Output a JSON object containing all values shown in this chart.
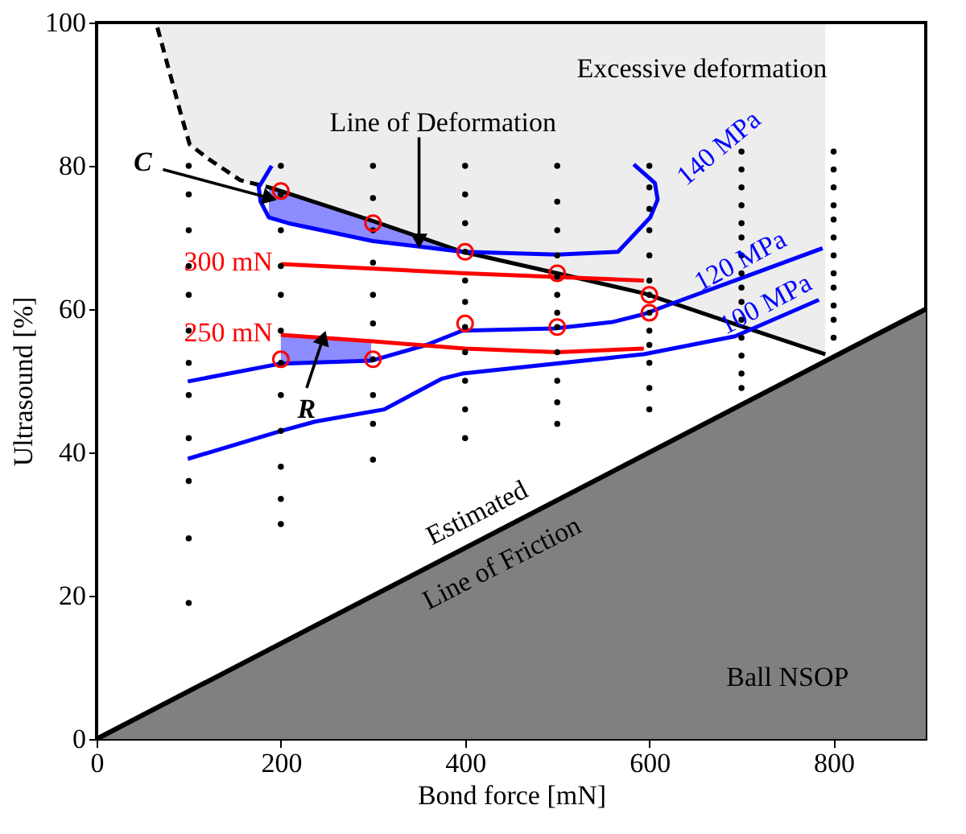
{
  "chart_data": {
    "type": "line",
    "xlabel": "Bond force [mN]",
    "ylabel": "Ultrasound [%]",
    "xlim": [
      0,
      900
    ],
    "ylim": [
      0,
      100
    ],
    "xticks": [
      0,
      200,
      400,
      600,
      800
    ],
    "yticks": [
      0,
      20,
      40,
      60,
      80,
      100
    ],
    "grid": false,
    "series": [
      {
        "color": "#000000",
        "line_style": "dashed",
        "x": [
          66,
          92,
          101,
          121,
          156,
          190
        ],
        "values": [
          99.3,
          87,
          83,
          81,
          78,
          76.9
        ],
        "lower": [
          99.3,
          87,
          83,
          81,
          78,
          76.9
        ],
        "upper": [
          100,
          100,
          100,
          100,
          100,
          100
        ]
      },
      {
        "color": "#000000",
        "x": [
          190,
          300,
          397,
          500,
          594,
          700,
          791
        ],
        "values": [
          76.9,
          72.3,
          68,
          65,
          62.2,
          57.6,
          53.7
        ],
        "lower": [
          76.9,
          72.3,
          68,
          65,
          62.2,
          57.6,
          53.7
        ],
        "upper": [
          100,
          100,
          100,
          100,
          100,
          100,
          100
        ]
      },
      {
        "type": "area",
        "color": "#808080",
        "x": [
          0,
          900
        ],
        "values": [
          0,
          60
        ]
      },
      {
        "name": "140 MPa",
        "color": "#0000ff",
        "x": [
          190,
          176,
          178,
          187,
          208,
          300,
          397,
          500,
          566,
          601,
          609,
          606,
          583
        ],
        "values": [
          80,
          77,
          75,
          72.8,
          72,
          69.5,
          68,
          67.6,
          68,
          72.8,
          75.3,
          77.6,
          80.2
        ],
        "lower": [
          null,
          null,
          null,
          72.8,
          72,
          69.5,
          68,
          null,
          null,
          null,
          null,
          null,
          null
        ],
        "upper": [
          null,
          null,
          null,
          77,
          76.1,
          72.3,
          68,
          null,
          null,
          null,
          null,
          null,
          null
        ]
      },
      {
        "name": "120 MPa",
        "color": "#0000ff",
        "x": [
          99,
          200,
          298,
          358,
          397,
          497,
          560,
          594,
          623,
          693,
          788
        ],
        "values": [
          49.9,
          52.4,
          52.8,
          55,
          57,
          57.3,
          58.2,
          59.3,
          60.7,
          64,
          68.5
        ],
        "lower": [
          null,
          52.4,
          52.8,
          null,
          null,
          null,
          null,
          null,
          null,
          null,
          null
        ],
        "upper": [
          null,
          56.4,
          55.5,
          null,
          null,
          null,
          null,
          null,
          null,
          null,
          null
        ]
      },
      {
        "name": "100 MPa",
        "color": "#0000ff",
        "x": [
          99,
          200,
          237,
          312,
          375,
          397,
          594,
          693,
          784
        ],
        "values": [
          39.1,
          43,
          44.3,
          46,
          50.3,
          51,
          53.7,
          56.2,
          61.3
        ]
      },
      {
        "name": "300 mN",
        "color": "#ff0000",
        "x": [
          200,
          400,
          594
        ],
        "values": [
          66.3,
          65,
          64
        ]
      },
      {
        "name": "250 mN",
        "color": "#ff0000",
        "x": [
          200,
          300,
          400,
          500,
          594
        ],
        "values": [
          56.4,
          55.5,
          54.5,
          54,
          54.5
        ]
      },
      {
        "type": "scatter",
        "color": "#000000",
        "x": [
          100,
          100,
          100,
          100,
          100,
          100,
          100,
          100,
          100,
          100,
          100,
          100,
          200,
          200,
          200,
          200,
          200,
          200,
          200,
          200,
          200,
          200,
          200,
          200,
          300,
          300,
          300,
          300,
          300,
          300,
          300,
          300,
          300,
          300,
          400,
          400,
          400,
          400,
          400,
          400,
          400,
          400,
          400,
          400,
          400,
          500,
          500,
          500,
          500,
          500,
          500,
          500,
          500,
          500,
          500,
          500,
          500,
          600,
          600,
          600,
          600,
          600,
          600,
          600,
          600,
          600,
          600,
          600,
          600,
          600,
          700,
          700,
          700,
          700,
          700,
          700,
          700,
          700,
          700,
          700,
          700,
          700,
          700,
          700,
          700,
          800,
          800,
          800,
          800,
          800,
          800,
          800,
          800,
          800,
          800,
          800,
          800
        ],
        "values": [
          80,
          76,
          71,
          66,
          62,
          57,
          52.5,
          48,
          42,
          36,
          28,
          19,
          80,
          76,
          71,
          66,
          62,
          57,
          52.5,
          48,
          43,
          38,
          33.5,
          30,
          80,
          75.5,
          71,
          66.5,
          62,
          58,
          53,
          48,
          44,
          39,
          80,
          76,
          72,
          68,
          64,
          61,
          57.5,
          54,
          50,
          46,
          42,
          80,
          75,
          71,
          67.5,
          64.5,
          62,
          59.5,
          57.5,
          54,
          50,
          47,
          44,
          80,
          77,
          74,
          71,
          67.5,
          64,
          62,
          59.5,
          57,
          55,
          52.5,
          49,
          46,
          82,
          79.5,
          77,
          74.5,
          72,
          70,
          67.5,
          65,
          63,
          61,
          58.5,
          56,
          53.5,
          51,
          49,
          82,
          79.5,
          77,
          74.5,
          72.5,
          70,
          67.5,
          65,
          63,
          60.5,
          58.5,
          56
        ]
      },
      {
        "type": "scatter",
        "color": "#ff0000",
        "marker": "circle",
        "x": [
          200,
          300,
          400,
          500,
          600,
          600,
          500,
          400,
          300,
          200
        ],
        "values": [
          76.5,
          72,
          68,
          65,
          62,
          59.5,
          57.5,
          58,
          53,
          53
        ]
      }
    ],
    "annotations": [
      "Excessive deformation",
      {
        "text": "Line of Deformation",
        "x": 350,
        "y": 69.5
      },
      {
        "text": "C",
        "x": 188,
        "y": 75.5
      },
      {
        "text": "R",
        "x": 246,
        "y": 56
      },
      "Estimated",
      "Line of Friction",
      "Ball NSOP"
    ]
  }
}
